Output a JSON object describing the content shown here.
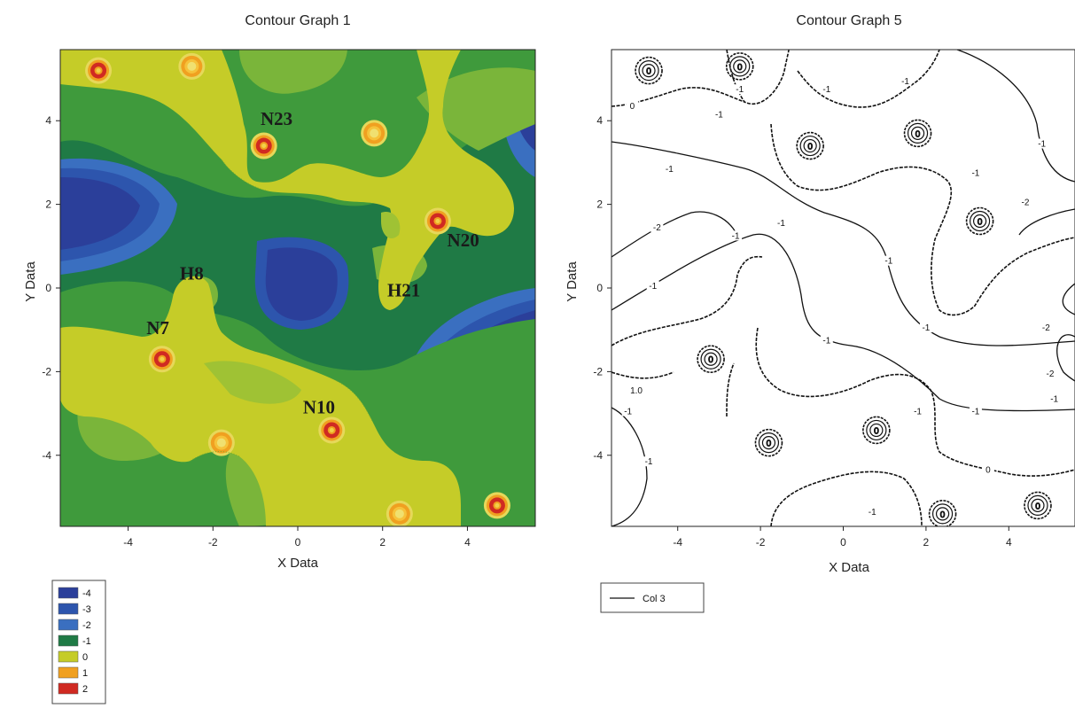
{
  "chart_data": [
    {
      "type": "heatmap",
      "title": "Contour Graph 1",
      "xlabel": "X Data",
      "ylabel": "Y Data",
      "xlim": [
        -5.6,
        5.6
      ],
      "ylim": [
        -5.7,
        5.7
      ],
      "x_ticks": [
        "-4",
        "-2",
        "0",
        "2",
        "4"
      ],
      "y_ticks": [
        "4",
        "2",
        "0",
        "-2",
        "-4"
      ],
      "levels": [
        {
          "label": "-4",
          "color": "#2b3f9a"
        },
        {
          "label": "-3",
          "color": "#2d55ad"
        },
        {
          "label": "-2",
          "color": "#3a6fc0"
        },
        {
          "label": "-1",
          "color": "#1f7a45"
        },
        {
          "label": "0",
          "color": "#c5cc28"
        },
        {
          "label": "1",
          "color": "#f0a020"
        },
        {
          "label": "2",
          "color": "#d02a22"
        }
      ],
      "annotations": [
        {
          "text": "N23",
          "x": -0.5,
          "y": 3.9
        },
        {
          "text": "N20",
          "x": 3.9,
          "y": 1.0
        },
        {
          "text": "H8",
          "x": -2.5,
          "y": 0.2
        },
        {
          "text": "H21",
          "x": 2.5,
          "y": -0.2
        },
        {
          "text": "N7",
          "x": -3.3,
          "y": -1.1
        },
        {
          "text": "N10",
          "x": 0.5,
          "y": -3.0
        }
      ],
      "peaks": [
        {
          "x": -4.7,
          "y": 5.2,
          "level": 2
        },
        {
          "x": -2.5,
          "y": 5.3,
          "level": 1
        },
        {
          "x": -0.8,
          "y": 3.4,
          "level": 2
        },
        {
          "x": 1.8,
          "y": 3.7,
          "level": 1
        },
        {
          "x": 3.3,
          "y": 1.6,
          "level": 2
        },
        {
          "x": -3.2,
          "y": -1.7,
          "level": 2
        },
        {
          "x": -1.8,
          "y": -3.7,
          "level": 1
        },
        {
          "x": 0.8,
          "y": -3.4,
          "level": 2
        },
        {
          "x": 2.4,
          "y": -5.4,
          "level": 1
        },
        {
          "x": 4.7,
          "y": -5.2,
          "level": 2
        }
      ],
      "minima": [
        {
          "x": -5.5,
          "y": 1.8,
          "level": -4
        },
        {
          "x": 0.0,
          "y": 0.0,
          "level": -4
        },
        {
          "x": 5.5,
          "y": -1.8,
          "level": -4
        },
        {
          "x": 5.6,
          "y": 4.3,
          "level": -4
        },
        {
          "x": -5.6,
          "y": -4.3,
          "level": -3
        }
      ]
    },
    {
      "type": "line",
      "title": "Contour Graph 5",
      "xlabel": "X Data",
      "ylabel": "Y Data",
      "xlim": [
        -5.6,
        5.6
      ],
      "ylim": [
        -5.7,
        5.7
      ],
      "x_ticks": [
        "-4",
        "-2",
        "0",
        "2",
        "4"
      ],
      "y_ticks": [
        "4",
        "2",
        "0",
        "-2",
        "-4"
      ],
      "legend": "Col 3",
      "contour_labels": [
        {
          "text": "-1",
          "x": -2.5,
          "y": 4.7
        },
        {
          "text": "0",
          "x": -5.1,
          "y": 4.3
        },
        {
          "text": "-1",
          "x": -3.0,
          "y": 4.1
        },
        {
          "text": "-1",
          "x": -0.4,
          "y": 4.7
        },
        {
          "text": "-1",
          "x": 1.5,
          "y": 4.9
        },
        {
          "text": "-1",
          "x": -4.2,
          "y": 2.8
        },
        {
          "text": "-2",
          "x": -4.5,
          "y": 1.4
        },
        {
          "text": "-1",
          "x": -1.5,
          "y": 1.5
        },
        {
          "text": "-1",
          "x": -2.6,
          "y": 1.2
        },
        {
          "text": "-1",
          "x": 1.1,
          "y": 0.6
        },
        {
          "text": "-1",
          "x": -4.6,
          "y": 0.0
        },
        {
          "text": "-1",
          "x": 3.2,
          "y": 2.7
        },
        {
          "text": "-2",
          "x": 4.4,
          "y": 2.0
        },
        {
          "text": "-1",
          "x": 4.8,
          "y": 3.4
        },
        {
          "text": "-1",
          "x": 5.1,
          "y": -2.7
        },
        {
          "text": "-2",
          "x": 4.9,
          "y": -1.0
        },
        {
          "text": "-2",
          "x": 5.0,
          "y": -2.1
        },
        {
          "text": "-1",
          "x": 2.0,
          "y": -1.0
        },
        {
          "text": "-1",
          "x": -0.4,
          "y": -1.3
        },
        {
          "text": "-1",
          "x": 1.8,
          "y": -3.0
        },
        {
          "text": "-1",
          "x": -5.2,
          "y": -3.0
        },
        {
          "text": "-1",
          "x": 3.2,
          "y": -3.0
        },
        {
          "text": "-1",
          "x": -4.7,
          "y": -4.2
        },
        {
          "text": "1.0",
          "x": -5.0,
          "y": -2.5
        },
        {
          "text": "0",
          "x": 3.5,
          "y": -4.4
        },
        {
          "text": "-1",
          "x": 0.7,
          "y": -5.4
        }
      ]
    }
  ]
}
